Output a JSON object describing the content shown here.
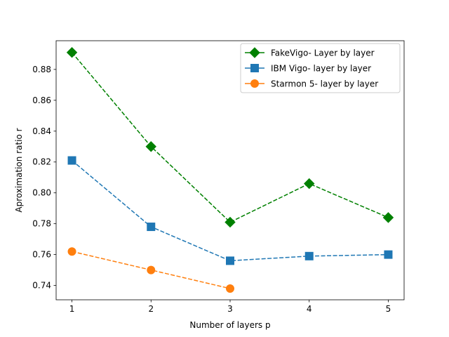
{
  "chart_data": {
    "type": "line",
    "title": "",
    "xlabel": "Number of layers p",
    "ylabel": "Aproximation ratio r",
    "x_ticks": [
      1,
      2,
      3,
      4,
      5
    ],
    "y_ticks": [
      0.74,
      0.76,
      0.78,
      0.8,
      0.82,
      0.84,
      0.86,
      0.88
    ],
    "y_tick_labels": [
      "0.74",
      "0.76",
      "0.78",
      "0.80",
      "0.82",
      "0.84",
      "0.86",
      "0.88"
    ],
    "xlim": [
      0.8,
      5.2
    ],
    "ylim": [
      0.7307,
      0.8986
    ],
    "grid": false,
    "legend_position": "top-right",
    "series": [
      {
        "name": "FakeVigo- Layer by layer",
        "color": "#008000",
        "marker": "diamond",
        "x": [
          1,
          2,
          3,
          4,
          5
        ],
        "values": [
          0.891,
          0.83,
          0.781,
          0.806,
          0.784
        ]
      },
      {
        "name": "IBM Vigo- layer by layer",
        "color": "#1f77b4",
        "marker": "square",
        "x": [
          1,
          2,
          3,
          4,
          5
        ],
        "values": [
          0.821,
          0.778,
          0.756,
          0.759,
          0.76
        ]
      },
      {
        "name": "Starmon 5- layer by layer",
        "color": "#ff7f0e",
        "marker": "circle",
        "x": [
          1,
          2,
          3
        ],
        "values": [
          0.762,
          0.75,
          0.738
        ]
      }
    ]
  }
}
